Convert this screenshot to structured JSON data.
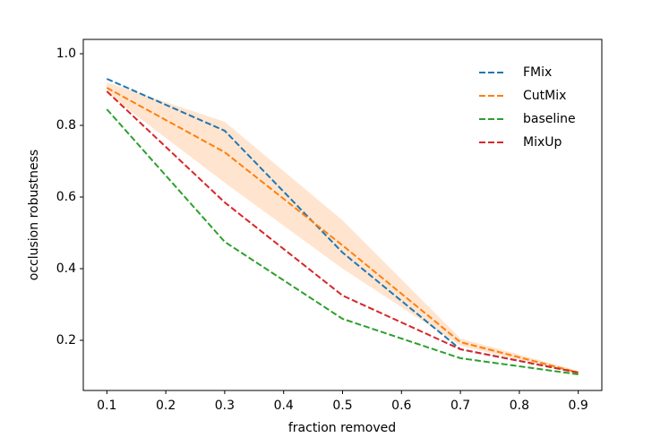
{
  "chart_data": {
    "type": "line",
    "xlabel": "fraction removed",
    "ylabel": "occlusion robustness",
    "x": [
      0.1,
      0.3,
      0.5,
      0.7,
      0.9
    ],
    "series": [
      {
        "name": "FMix",
        "color": "#1f77b4",
        "values": [
          0.93,
          0.785,
          0.445,
          0.175,
          0.11
        ]
      },
      {
        "name": "CutMix",
        "color": "#ff7f0e",
        "values": [
          0.905,
          0.725,
          0.465,
          0.195,
          0.11
        ],
        "band": {
          "lower": [
            0.89,
            0.64,
            0.4,
            0.185,
            0.105
          ],
          "upper": [
            0.92,
            0.81,
            0.535,
            0.205,
            0.115
          ]
        }
      },
      {
        "name": "baseline",
        "color": "#2ca02c",
        "values": [
          0.845,
          0.475,
          0.26,
          0.15,
          0.105
        ]
      },
      {
        "name": "MixUp",
        "color": "#d62728",
        "values": [
          0.895,
          0.585,
          0.325,
          0.175,
          0.11
        ]
      }
    ],
    "xlim": [
      0.06,
      0.94
    ],
    "ylim": [
      0.06,
      1.04
    ],
    "xticks": [
      0.1,
      0.2,
      0.3,
      0.4,
      0.5,
      0.6,
      0.7,
      0.8,
      0.9
    ],
    "yticks": [
      0.2,
      0.4,
      0.6,
      0.8,
      {
        "value": 1,
        "label": "1.0"
      }
    ],
    "legend": "upper right",
    "grid": false
  }
}
